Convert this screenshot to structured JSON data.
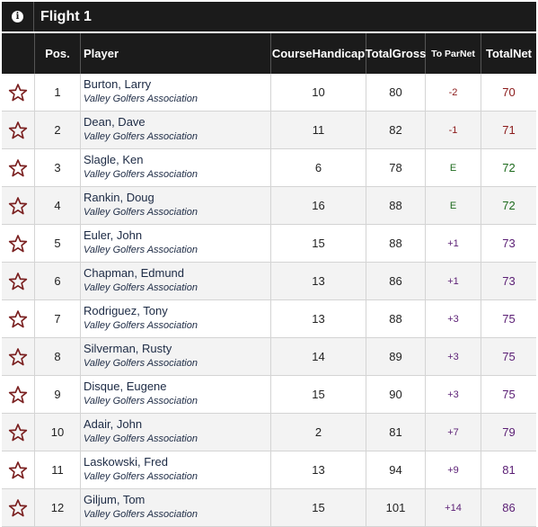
{
  "flight": {
    "info_icon": "info-icon",
    "title": "Flight 1"
  },
  "headers": {
    "pos": "Pos.",
    "player": "Player",
    "handicap_line1": "Course",
    "handicap_line2": "Handicap",
    "gross_line1": "Total",
    "gross_line2": "Gross",
    "topar_line1": "To Par",
    "topar_line2": "Net",
    "net_line1": "Total",
    "net_line2": "Net"
  },
  "colors": {
    "under_par": "#8b1a1a",
    "even_par": "#1e6b1e",
    "over_par": "#5a1e74"
  },
  "rows": [
    {
      "pos": "1",
      "name": "Burton, Larry",
      "assoc": "Valley Golfers Association",
      "handicap": "10",
      "gross": "80",
      "topar": "-2",
      "net": "70",
      "status": "under"
    },
    {
      "pos": "2",
      "name": "Dean, Dave",
      "assoc": "Valley Golfers Association",
      "handicap": "11",
      "gross": "82",
      "topar": "-1",
      "net": "71",
      "status": "under"
    },
    {
      "pos": "3",
      "name": "Slagle, Ken",
      "assoc": "Valley Golfers Association",
      "handicap": "6",
      "gross": "78",
      "topar": "E",
      "net": "72",
      "status": "even"
    },
    {
      "pos": "4",
      "name": "Rankin, Doug",
      "assoc": "Valley Golfers Association",
      "handicap": "16",
      "gross": "88",
      "topar": "E",
      "net": "72",
      "status": "even"
    },
    {
      "pos": "5",
      "name": "Euler, John",
      "assoc": "Valley Golfers Association",
      "handicap": "15",
      "gross": "88",
      "topar": "+1",
      "net": "73",
      "status": "over"
    },
    {
      "pos": "6",
      "name": "Chapman, Edmund",
      "assoc": "Valley Golfers Association",
      "handicap": "13",
      "gross": "86",
      "topar": "+1",
      "net": "73",
      "status": "over"
    },
    {
      "pos": "7",
      "name": "Rodriguez, Tony",
      "assoc": "Valley Golfers Association",
      "handicap": "13",
      "gross": "88",
      "topar": "+3",
      "net": "75",
      "status": "over"
    },
    {
      "pos": "8",
      "name": "Silverman, Rusty",
      "assoc": "Valley Golfers Association",
      "handicap": "14",
      "gross": "89",
      "topar": "+3",
      "net": "75",
      "status": "over"
    },
    {
      "pos": "9",
      "name": "Disque, Eugene",
      "assoc": "Valley Golfers Association",
      "handicap": "15",
      "gross": "90",
      "topar": "+3",
      "net": "75",
      "status": "over"
    },
    {
      "pos": "10",
      "name": "Adair, John",
      "assoc": "Valley Golfers Association",
      "handicap": "2",
      "gross": "81",
      "topar": "+7",
      "net": "79",
      "status": "over"
    },
    {
      "pos": "11",
      "name": "Laskowski, Fred",
      "assoc": "Valley Golfers Association",
      "handicap": "13",
      "gross": "94",
      "topar": "+9",
      "net": "81",
      "status": "over"
    },
    {
      "pos": "12",
      "name": "Giljum, Tom",
      "assoc": "Valley Golfers Association",
      "handicap": "15",
      "gross": "101",
      "topar": "+14",
      "net": "86",
      "status": "over"
    }
  ]
}
